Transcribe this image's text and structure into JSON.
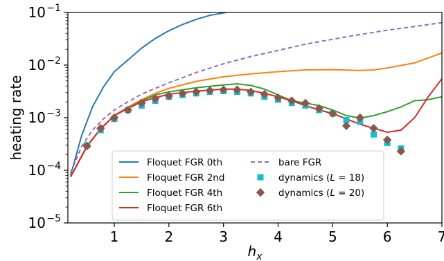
{
  "chart_data": {
    "type": "line",
    "xlabel": "h",
    "xlabel_sub": "x",
    "ylabel": "heating rate",
    "xlim": [
      0.15,
      7.0
    ],
    "ylim": [
      1e-05,
      0.1
    ],
    "yscale": "log",
    "grid": false,
    "legend_position": "lower center",
    "x_ticks": [
      1,
      2,
      3,
      4,
      5,
      6,
      7
    ],
    "x_tick_labels": [
      "1",
      "2",
      "3",
      "4",
      "5",
      "6",
      "7"
    ],
    "y_ticks": [
      1e-05,
      0.0001,
      0.001,
      0.01,
      0.1
    ],
    "y_tick_labels": [
      {
        "base": "10",
        "exp": "−5"
      },
      {
        "base": "10",
        "exp": "−4"
      },
      {
        "base": "10",
        "exp": "−3"
      },
      {
        "base": "10",
        "exp": "−2"
      },
      {
        "base": "10",
        "exp": "−1"
      }
    ],
    "series": [
      {
        "name": "Floquet FGR 0th",
        "kind": "line",
        "color": "#1f77b4",
        "x": [
          0.2,
          0.4,
          0.6,
          0.8,
          1.0,
          1.25,
          1.5,
          1.75,
          2.0,
          2.25,
          2.5,
          2.75,
          3.0,
          3.05
        ],
        "y": [
          8e-05,
          0.00045,
          0.0016,
          0.0038,
          0.0075,
          0.0125,
          0.021,
          0.032,
          0.045,
          0.059,
          0.074,
          0.088,
          0.098,
          0.1
        ]
      },
      {
        "name": "Floquet FGR 2nd",
        "kind": "line",
        "color": "#ff7f0e",
        "x": [
          0.2,
          0.5,
          0.75,
          1.0,
          1.25,
          1.5,
          1.75,
          2.0,
          2.5,
          3.0,
          3.5,
          4.0,
          4.5,
          5.0,
          5.5,
          5.75,
          6.0,
          6.5,
          7.0
        ],
        "y": [
          7.5e-05,
          0.00028,
          0.00062,
          0.0011,
          0.0016,
          0.0022,
          0.0029,
          0.0036,
          0.0049,
          0.006,
          0.0068,
          0.0075,
          0.0081,
          0.0082,
          0.0079,
          0.0081,
          0.0088,
          0.011,
          0.017
        ]
      },
      {
        "name": "Floquet FGR 4th",
        "kind": "line",
        "color": "#2ca02c",
        "x": [
          0.2,
          0.5,
          0.75,
          1.0,
          1.25,
          1.5,
          1.75,
          2.0,
          2.5,
          3.0,
          3.25,
          3.5,
          3.75,
          4.0,
          4.25,
          4.5,
          4.75,
          5.0,
          5.25,
          5.5,
          5.75,
          6.0,
          6.25,
          6.5,
          6.75,
          7.0
        ],
        "y": [
          7.5e-05,
          0.00029,
          0.00062,
          0.0011,
          0.0015,
          0.0021,
          0.0027,
          0.0031,
          0.0037,
          0.0042,
          0.0044,
          0.0041,
          0.0035,
          0.0027,
          0.0021,
          0.0019,
          0.0017,
          0.0014,
          0.0011,
          0.00098,
          0.0011,
          0.0013,
          0.0016,
          0.0021,
          0.0022,
          0.0025
        ]
      },
      {
        "name": "Floquet FGR 6th",
        "kind": "line",
        "color": "#d62728",
        "x": [
          0.2,
          0.5,
          0.75,
          1.0,
          1.25,
          1.5,
          1.75,
          2.0,
          2.5,
          3.0,
          3.25,
          3.5,
          3.75,
          4.0,
          4.25,
          4.5,
          4.75,
          5.0,
          5.25,
          5.5,
          5.75,
          6.0,
          6.25,
          6.5,
          6.75,
          7.0
        ],
        "y": [
          7.5e-05,
          0.00029,
          0.00061,
          0.0011,
          0.0015,
          0.002,
          0.0024,
          0.0028,
          0.0032,
          0.0035,
          0.0035,
          0.0033,
          0.0029,
          0.0025,
          0.0021,
          0.0017,
          0.0014,
          0.0012,
          0.00095,
          0.00075,
          0.00063,
          0.00053,
          0.00058,
          0.001,
          0.0025,
          0.0055
        ]
      },
      {
        "name": "bare FGR",
        "kind": "dashed",
        "color": "#9467bd",
        "x": [
          0.2,
          0.4,
          0.6,
          0.8,
          1.0,
          1.25,
          1.5,
          1.75,
          2.0,
          2.5,
          3.0,
          3.5,
          4.0,
          4.5,
          5.0,
          5.5,
          6.0,
          6.5,
          7.0
        ],
        "y": [
          9e-05,
          0.00028,
          0.00058,
          0.00095,
          0.0014,
          0.002,
          0.0028,
          0.0036,
          0.0046,
          0.0072,
          0.0106,
          0.0145,
          0.019,
          0.025,
          0.031,
          0.038,
          0.046,
          0.054,
          0.064
        ]
      },
      {
        "name": "dynamics",
        "label_suffix": " = 18)",
        "kind": "square",
        "color": "#17becf",
        "x": [
          0.5,
          0.75,
          1.0,
          1.25,
          1.5,
          1.75,
          2.0,
          2.25,
          2.5,
          2.75,
          3.0,
          3.25,
          3.5,
          3.75,
          4.0,
          4.25,
          4.5,
          4.75,
          5.0,
          5.25,
          5.5,
          5.75,
          6.0,
          6.25
        ],
        "y": [
          0.0003,
          0.00058,
          0.00095,
          0.0014,
          0.0017,
          0.0021,
          0.0025,
          0.0027,
          0.0029,
          0.0031,
          0.0032,
          0.0031,
          0.0029,
          0.0025,
          0.0022,
          0.0019,
          0.0017,
          0.0014,
          0.0012,
          0.0009,
          0.00085,
          0.00048,
          0.00033,
          0.00026
        ]
      },
      {
        "name": "dynamics",
        "label_suffix": " = 20)",
        "kind": "diamond",
        "color": "#8c564b",
        "x": [
          0.5,
          0.75,
          1.0,
          1.25,
          1.5,
          1.75,
          2.0,
          2.25,
          2.5,
          2.75,
          3.0,
          3.25,
          3.5,
          3.75,
          4.0,
          4.25,
          4.5,
          4.75,
          5.0,
          5.25,
          5.5,
          5.75,
          6.0,
          6.25
        ],
        "y": [
          0.00029,
          0.00063,
          0.001,
          0.0014,
          0.0019,
          0.0023,
          0.0026,
          0.0029,
          0.0031,
          0.0033,
          0.0034,
          0.0034,
          0.0031,
          0.0028,
          0.0024,
          0.0021,
          0.0019,
          0.0015,
          0.0012,
          0.0007,
          0.001,
          0.00063,
          0.00038,
          0.00023
        ]
      }
    ],
    "legend": {
      "items": [
        {
          "label": "Floquet FGR 0th",
          "series": 0
        },
        {
          "label": "bare FGR",
          "series": 4
        },
        {
          "label": "Floquet FGR 2nd",
          "series": 1
        },
        {
          "label": "dynamics (",
          "italic": "L",
          "suffix": " = 18)",
          "series": 5
        },
        {
          "label": "Floquet FGR 4th",
          "series": 2
        },
        {
          "label": "dynamics (",
          "italic": "L",
          "suffix": " = 20)",
          "series": 6
        },
        {
          "label": "Floquet FGR 6th",
          "series": 3
        }
      ]
    }
  }
}
